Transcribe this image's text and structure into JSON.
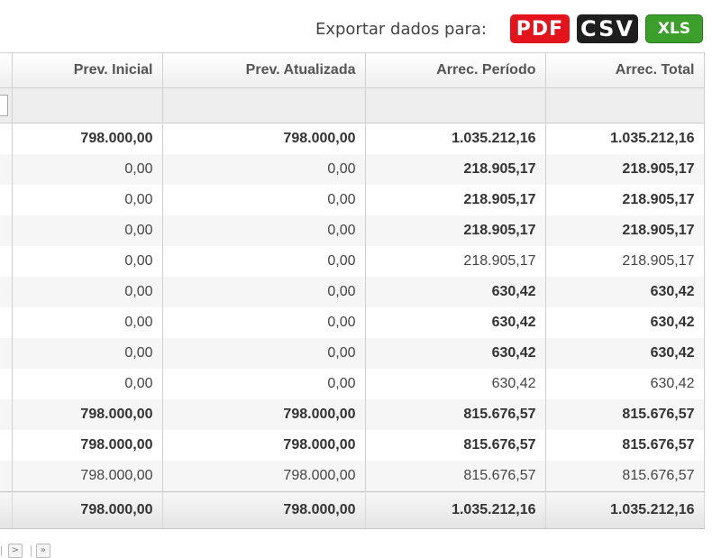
{
  "export": {
    "label": "Exportar dados para:",
    "pdf": "PDF",
    "csv": "CSV",
    "xls": "XLS"
  },
  "columns": [
    "Prev. Inicial",
    "Prev. Atualizada",
    "Arrec. Período",
    "Arrec. Total"
  ],
  "rows": [
    {
      "style": "bold",
      "cells": [
        "798.000,00",
        "798.000,00",
        "1.035.212,16",
        "1.035.212,16"
      ]
    },
    {
      "style": "mixed",
      "cells": [
        "0,00",
        "0,00",
        "218.905,17",
        "218.905,17"
      ]
    },
    {
      "style": "mixed",
      "cells": [
        "0,00",
        "0,00",
        "218.905,17",
        "218.905,17"
      ]
    },
    {
      "style": "mixed",
      "cells": [
        "0,00",
        "0,00",
        "218.905,17",
        "218.905,17"
      ]
    },
    {
      "style": "normal",
      "cells": [
        "0,00",
        "0,00",
        "218.905,17",
        "218.905,17"
      ]
    },
    {
      "style": "mixed",
      "cells": [
        "0,00",
        "0,00",
        "630,42",
        "630,42"
      ]
    },
    {
      "style": "mixed",
      "cells": [
        "0,00",
        "0,00",
        "630,42",
        "630,42"
      ]
    },
    {
      "style": "mixed",
      "cells": [
        "0,00",
        "0,00",
        "630,42",
        "630,42"
      ]
    },
    {
      "style": "normal",
      "cells": [
        "0,00",
        "0,00",
        "630,42",
        "630,42"
      ]
    },
    {
      "style": "bold",
      "cells": [
        "798.000,00",
        "798.000,00",
        "815.676,57",
        "815.676,57"
      ]
    },
    {
      "style": "bold",
      "cells": [
        "798.000,00",
        "798.000,00",
        "815.676,57",
        "815.676,57"
      ]
    },
    {
      "style": "normal",
      "cells": [
        "798.000,00",
        "798.000,00",
        "815.676,57",
        "815.676,57"
      ]
    }
  ],
  "totals": [
    "798.000,00",
    "798.000,00",
    "1.035.212,16",
    "1.035.212,16"
  ],
  "pager": {
    "prev": "|",
    "next": ">",
    "last": "»"
  },
  "colors": {
    "pdf": "#e3141b",
    "csv": "#1e1e1e",
    "xls": "#3c9e2b"
  }
}
